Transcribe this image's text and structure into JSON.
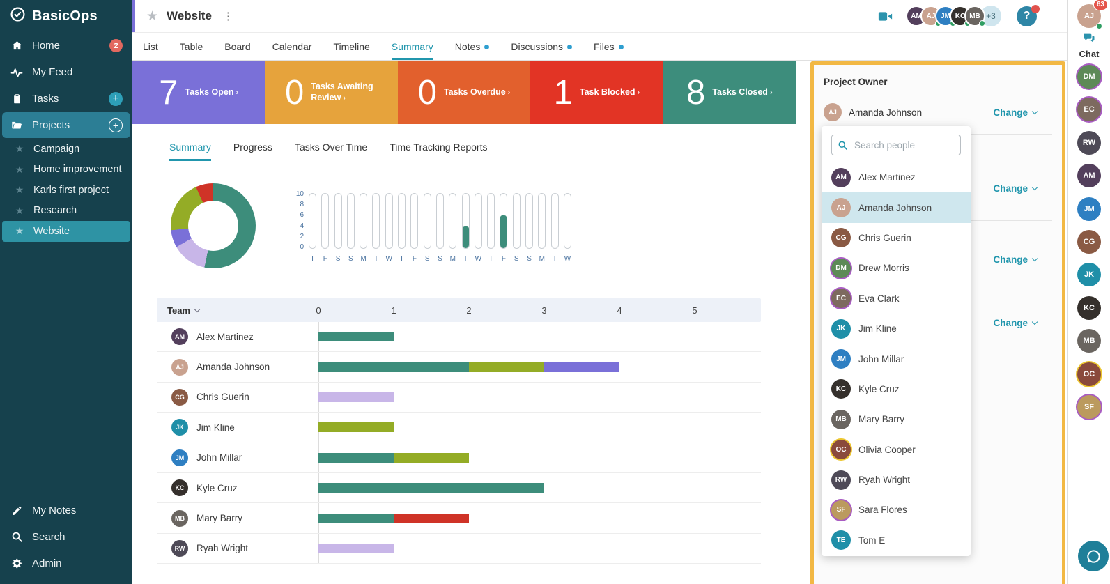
{
  "app": {
    "logo": "BasicOps"
  },
  "colors": {
    "teal": "#3d8d7b",
    "olive": "#94ac26",
    "lavender": "#c8b6e8",
    "purple": "#7a70d8",
    "red": "#cf3327",
    "accent": "#2196ad",
    "panel_border": "#f2b844",
    "selected_row": "#cfe7ee",
    "sidebar_bg": "#16414d",
    "sidebar_active": "#2c7e95",
    "sidebar_project_active": "#2e93a4"
  },
  "sidebar": {
    "main_items": [
      {
        "label": "Home",
        "icon": "home-icon",
        "badge": "2"
      },
      {
        "label": "My Feed",
        "icon": "feed-icon"
      },
      {
        "label": "Tasks",
        "icon": "tasks-icon",
        "add": true,
        "add_style": "filled"
      },
      {
        "label": "Projects",
        "icon": "folder-icon",
        "add": true,
        "add_style": "outline",
        "active": true
      }
    ],
    "project_items": [
      {
        "label": "Campaign"
      },
      {
        "label": "Home improvement"
      },
      {
        "label": "Karls first project"
      },
      {
        "label": "Research"
      },
      {
        "label": "Website",
        "active": true
      }
    ],
    "bottom_items": [
      {
        "label": "My Notes",
        "icon": "notes-icon"
      },
      {
        "label": "Search",
        "icon": "search-icon"
      },
      {
        "label": "Admin",
        "icon": "gear-icon"
      }
    ]
  },
  "header": {
    "title": "Website",
    "plus_count": "+3",
    "help_label": "?"
  },
  "top_right": {
    "members": [
      {
        "name": "Alex Martinez",
        "initials": "AM",
        "color": "#533f5c",
        "online": false
      },
      {
        "name": "Amanda Johnson",
        "initials": "AJ",
        "color": "#c9a28f",
        "online": true
      },
      {
        "name": "John Millar",
        "initials": "JM",
        "color": "#2e7fc2",
        "online": true
      },
      {
        "name": "Kyle Cruz",
        "initials": "KC",
        "color": "#35302c",
        "online": true
      },
      {
        "name": "Mary Barry",
        "initials": "MB",
        "color": "#6a6560",
        "online": true
      }
    ],
    "plus_count": "+3",
    "user": {
      "name": "Amanda Johnson",
      "initials": "AJ",
      "color": "#c9a28f",
      "badge": "63"
    }
  },
  "project_tabs": [
    {
      "label": "List"
    },
    {
      "label": "Table"
    },
    {
      "label": "Board"
    },
    {
      "label": "Calendar"
    },
    {
      "label": "Timeline"
    },
    {
      "label": "Summary",
      "active": true
    },
    {
      "label": "Notes",
      "dot": true
    },
    {
      "label": "Discussions",
      "dot": true
    },
    {
      "label": "Files",
      "dot": true
    }
  ],
  "stats": [
    {
      "value": "7",
      "label": "Tasks Open",
      "color": "#7a70d8"
    },
    {
      "value": "0",
      "label": "Tasks Awaiting Review",
      "color": "#e6a33c"
    },
    {
      "value": "0",
      "label": "Tasks Overdue",
      "color": "#e2602d"
    },
    {
      "value": "1",
      "label": "Task Blocked",
      "color": "#e23425"
    },
    {
      "value": "8",
      "label": "Tasks Closed",
      "color": "#3d8d7c"
    }
  ],
  "summary_tabs": [
    {
      "label": "Summary",
      "active": true
    },
    {
      "label": "Progress"
    },
    {
      "label": "Tasks Over Time"
    },
    {
      "label": "Time Tracking Reports"
    }
  ],
  "chart_data": [
    {
      "type": "pie",
      "title": "Task status donut",
      "segments": [
        {
          "color_key": "teal",
          "value": 8
        },
        {
          "color_key": "lavender",
          "value": 2
        },
        {
          "color_key": "purple",
          "value": 1
        },
        {
          "color_key": "olive",
          "value": 3
        },
        {
          "color_key": "red",
          "value": 1
        }
      ]
    },
    {
      "type": "bar",
      "title": "Tasks over time",
      "ylim": [
        0,
        10
      ],
      "yticks": [
        "10",
        "8",
        "6",
        "4",
        "2",
        "0"
      ],
      "categories": [
        "T",
        "F",
        "S",
        "S",
        "M",
        "T",
        "W",
        "T",
        "F",
        "S",
        "S",
        "M",
        "T",
        "W",
        "T",
        "F",
        "S",
        "S",
        "M",
        "T",
        "W"
      ],
      "values": [
        0,
        0,
        0,
        0,
        0,
        0,
        0,
        0,
        0,
        0,
        0,
        0,
        4,
        0,
        0,
        6,
        0,
        0,
        0,
        0,
        0
      ],
      "bar_color_key": "teal"
    },
    {
      "type": "bar",
      "orientation": "horizontal",
      "title": "Team",
      "x_ticks": [
        0,
        1,
        2,
        3,
        4,
        5
      ],
      "categories": [
        "Alex Martinez",
        "Amanda Johnson",
        "Chris Guerin",
        "Jim Kline",
        "John Millar",
        "Kyle Cruz",
        "Mary Barry",
        "Ryah Wright"
      ],
      "series": [
        {
          "name": "teal",
          "values": [
            1,
            2,
            0,
            0,
            1,
            3,
            1,
            0
          ]
        },
        {
          "name": "olive",
          "values": [
            0,
            1,
            0,
            1,
            1,
            0,
            0,
            0
          ]
        },
        {
          "name": "purple",
          "values": [
            0,
            1,
            0,
            0,
            0,
            0,
            0,
            0
          ]
        },
        {
          "name": "lavender",
          "values": [
            0,
            0,
            1,
            0,
            0,
            0,
            0,
            1
          ]
        },
        {
          "name": "red",
          "values": [
            0,
            0,
            0,
            0,
            0,
            0,
            1,
            0
          ]
        }
      ]
    }
  ],
  "team_table": {
    "header": "Team",
    "axis_ticks": [
      "0",
      "1",
      "2",
      "3",
      "4",
      "5"
    ],
    "rows": [
      {
        "name": "Alex Martinez",
        "initials": "AM",
        "color": "#533f5c",
        "segments": [
          {
            "color_key": "teal",
            "value": 1
          }
        ]
      },
      {
        "name": "Amanda Johnson",
        "initials": "AJ",
        "color": "#c9a28f",
        "segments": [
          {
            "color_key": "teal",
            "value": 2
          },
          {
            "color_key": "olive",
            "value": 1
          },
          {
            "color_key": "purple",
            "value": 1
          }
        ]
      },
      {
        "name": "Chris Guerin",
        "initials": "CG",
        "color": "#8a5a44",
        "segments": [
          {
            "color_key": "lavender",
            "value": 1
          }
        ]
      },
      {
        "name": "Jim Kline",
        "initials": "JK",
        "color": "#1f8fa8",
        "text_avatar": true,
        "segments": [
          {
            "color_key": "olive",
            "value": 1
          }
        ]
      },
      {
        "name": "John Millar",
        "initials": "JM",
        "color": "#2e7fc2",
        "segments": [
          {
            "color_key": "teal",
            "value": 1
          },
          {
            "color_key": "olive",
            "value": 1
          }
        ]
      },
      {
        "name": "Kyle Cruz",
        "initials": "KC",
        "color": "#35302c",
        "segments": [
          {
            "color_key": "teal",
            "value": 3
          }
        ]
      },
      {
        "name": "Mary Barry",
        "initials": "MB",
        "color": "#6a6560",
        "segments": [
          {
            "color_key": "teal",
            "value": 1
          },
          {
            "color_key": "red",
            "value": 1
          }
        ]
      },
      {
        "name": "Ryah Wright",
        "initials": "RW",
        "color": "#4e4a57",
        "segments": [
          {
            "color_key": "lavender",
            "value": 1
          }
        ]
      }
    ]
  },
  "owner_panel": {
    "title": "Project Owner",
    "owner": {
      "name": "Amanda Johnson",
      "initials": "AJ",
      "color": "#c9a28f"
    },
    "change_label": "Change",
    "extra_change_rows": 3
  },
  "people_dropdown": {
    "search_placeholder": "Search people",
    "items": [
      {
        "name": "Alex Martinez",
        "initials": "AM",
        "color": "#533f5c"
      },
      {
        "name": "Amanda Johnson",
        "initials": "AJ",
        "color": "#c9a28f",
        "selected": true
      },
      {
        "name": "Chris Guerin",
        "initials": "CG",
        "color": "#8a5a44"
      },
      {
        "name": "Drew Morris",
        "initials": "DM",
        "color": "#5d8a57",
        "ring": "#a85cc2"
      },
      {
        "name": "Eva Clark",
        "initials": "EC",
        "color": "#7d6a5f",
        "ring": "#a85cc2"
      },
      {
        "name": "Jim Kline",
        "initials": "JK",
        "color": "#1f8fa8",
        "text_avatar": true
      },
      {
        "name": "John Millar",
        "initials": "JM",
        "color": "#2e7fc2"
      },
      {
        "name": "Kyle Cruz",
        "initials": "KC",
        "color": "#35302c"
      },
      {
        "name": "Mary Barry",
        "initials": "MB",
        "color": "#6a6560"
      },
      {
        "name": "Olivia Cooper",
        "initials": "OC",
        "color": "#8a4a3c",
        "ring": "#ecc62f"
      },
      {
        "name": "Ryah Wright",
        "initials": "RW",
        "color": "#4e4a57"
      },
      {
        "name": "Sara Flores",
        "initials": "SF",
        "color": "#bb9a5e",
        "ring": "#a85cc2"
      },
      {
        "name": "Tom E",
        "initials": "TE",
        "color": "#1f8fa8",
        "text_avatar": true
      }
    ]
  },
  "chat_rail": {
    "label": "Chat",
    "members": [
      {
        "name": "Drew Morris",
        "initials": "DM",
        "color": "#5d8a57",
        "ring": "#a85cc2"
      },
      {
        "name": "Eva Clark",
        "initials": "EC",
        "color": "#7d6a5f",
        "ring": "#a85cc2"
      },
      {
        "name": "Ryah Wright",
        "initials": "RW",
        "color": "#4e4a57"
      },
      {
        "name": "Alex Martinez",
        "initials": "AM",
        "color": "#533f5c"
      },
      {
        "name": "John Millar",
        "initials": "JM",
        "color": "#2e7fc2"
      },
      {
        "name": "Chris Guerin",
        "initials": "CG",
        "color": "#8a5a44"
      },
      {
        "name": "Jim Kline",
        "initials": "JK",
        "color": "#1f8fa8",
        "text_avatar": true
      },
      {
        "name": "Kyle Cruz",
        "initials": "KC",
        "color": "#35302c"
      },
      {
        "name": "Mary Barry",
        "initials": "MB",
        "color": "#6a6560"
      },
      {
        "name": "Olivia Cooper",
        "initials": "OC",
        "color": "#8a4a3c",
        "ring": "#ecc62f"
      },
      {
        "name": "Sara Flores",
        "initials": "SF",
        "color": "#bb9a5e",
        "ring": "#a85cc2"
      }
    ]
  }
}
